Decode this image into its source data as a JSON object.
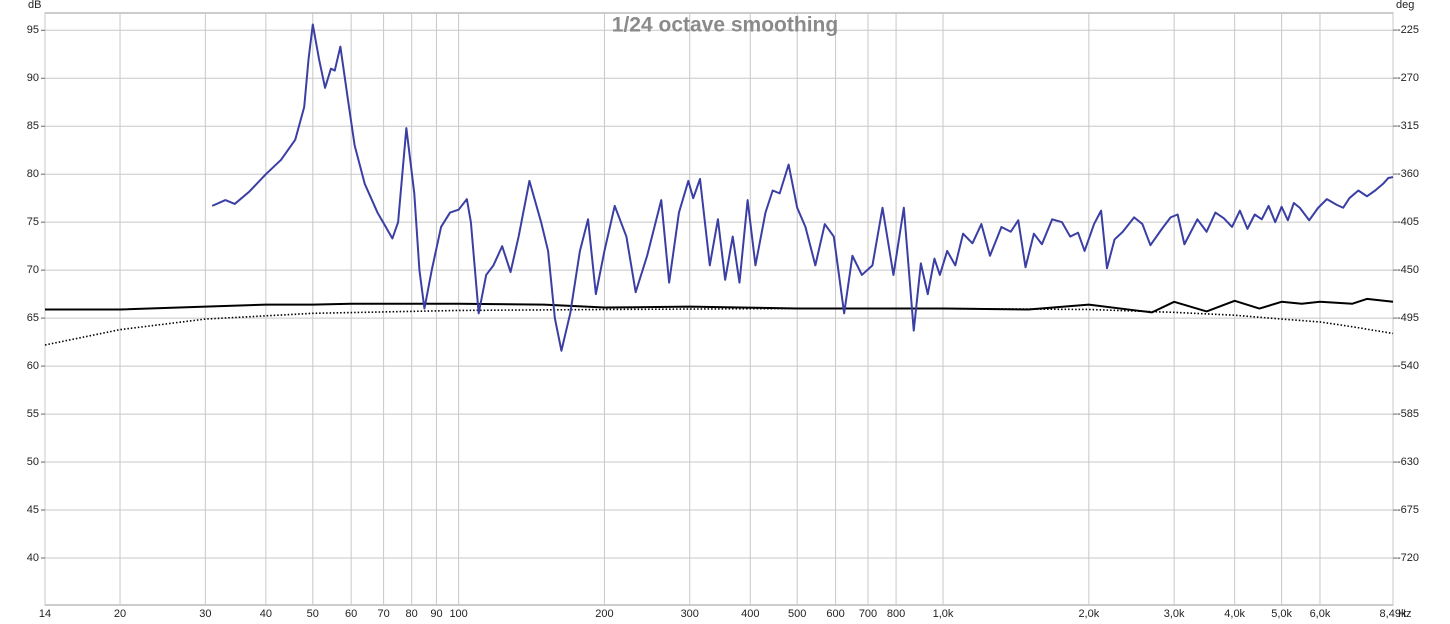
{
  "chart_data": {
    "type": "line",
    "title": "1/24 octave smoothing",
    "y_label": "dB",
    "y2_label": "deg",
    "x_label": "Hz",
    "log_x": true,
    "grid": true,
    "xlim": [
      14,
      8490
    ],
    "xticks": [
      14,
      20,
      30,
      40,
      50,
      60,
      70,
      80,
      90,
      100,
      200,
      300,
      400,
      500,
      600,
      700,
      800,
      {
        "value": 1000,
        "label": "1,0k"
      },
      {
        "value": 2000,
        "label": "2,0k"
      },
      {
        "value": 3000,
        "label": "3,0k"
      },
      {
        "value": 4000,
        "label": "4,0k"
      },
      {
        "value": 5000,
        "label": "5,0k"
      },
      {
        "value": 6000,
        "label": "6,0k"
      },
      {
        "value": 8490,
        "label": "8,49k"
      }
    ],
    "ylim": [
      35.1,
      96.8
    ],
    "yticks": [
      40,
      45,
      50,
      55,
      60,
      65,
      70,
      75,
      80,
      85,
      90,
      95
    ],
    "y2lim": [
      -764,
      -209
    ],
    "y2ticks": [
      -720,
      -675,
      -630,
      -585,
      -540,
      -495,
      -450,
      -405,
      -360,
      -315,
      -270,
      -225
    ],
    "series": [
      {
        "color": "#3b3fa3",
        "style": "solid",
        "x": [
          31,
          33,
          34.5,
          37,
          40,
          43,
          46,
          48,
          49,
          50,
          51.5,
          53,
          54.5,
          55.5,
          57,
          59,
          61,
          64,
          68,
          73,
          75,
          78,
          81,
          83,
          85,
          88,
          92,
          96,
          100,
          104,
          106,
          110,
          114,
          118,
          123,
          128,
          133,
          140,
          148,
          153,
          158,
          163,
          170,
          178,
          185,
          192,
          200,
          210,
          222,
          232,
          245,
          262,
          272,
          285,
          298,
          305,
          315,
          330,
          343,
          355,
          368,
          380,
          395,
          410,
          430,
          445,
          460,
          480,
          500,
          520,
          545,
          570,
          595,
          625,
          650,
          680,
          715,
          750,
          790,
          830,
          870,
          900,
          930,
          960,
          985,
          1020,
          1060,
          1100,
          1150,
          1200,
          1250,
          1320,
          1380,
          1430,
          1480,
          1540,
          1600,
          1680,
          1760,
          1830,
          1900,
          1960,
          2050,
          2120,
          2180,
          2260,
          2350,
          2480,
          2580,
          2680,
          2830,
          2950,
          3050,
          3150,
          3350,
          3500,
          3650,
          3800,
          3950,
          4100,
          4250,
          4400,
          4550,
          4700,
          4850,
          5000,
          5150,
          5300,
          5450,
          5700,
          5950,
          6200,
          6500,
          6700,
          6900,
          7200,
          7500,
          7800,
          8100,
          8300,
          8490
        ],
        "values": [
          76.7,
          77.3,
          76.9,
          78.2,
          80,
          81.5,
          83.6,
          87,
          92,
          95.6,
          92,
          89,
          91,
          90.8,
          93.3,
          88,
          83,
          79,
          76,
          73.3,
          75,
          84.8,
          78,
          70,
          66,
          70,
          74.5,
          76,
          76.3,
          77.4,
          75,
          65.5,
          69.5,
          70.5,
          72.5,
          69.8,
          73.5,
          79.3,
          75,
          72,
          65,
          61.6,
          65.5,
          72,
          75.3,
          67.5,
          72,
          76.7,
          73.5,
          67.7,
          71.5,
          77.3,
          68.7,
          76,
          79.3,
          77.5,
          79.5,
          70.5,
          75.3,
          69,
          73.5,
          68.7,
          77.3,
          70.5,
          76,
          78.3,
          78,
          81,
          76.5,
          74.5,
          70.5,
          74.8,
          73.5,
          65.5,
          71.5,
          69.5,
          70.5,
          76.5,
          69.5,
          76.5,
          63.7,
          70.7,
          67.5,
          71.2,
          69.5,
          72,
          70.5,
          73.8,
          72.8,
          74.8,
          71.5,
          74.5,
          74,
          75.2,
          70.3,
          73.8,
          72.7,
          75.3,
          75,
          73.5,
          73.9,
          72,
          74.8,
          76.2,
          70.2,
          73.2,
          74,
          75.5,
          74.8,
          72.6,
          74.3,
          75.5,
          75.8,
          72.7,
          75.3,
          74,
          76,
          75.4,
          74.5,
          76.2,
          74.3,
          75.8,
          75.3,
          76.7,
          75,
          76.6,
          75.2,
          77,
          76.5,
          75.2,
          76.5,
          77.4,
          76.8,
          76.5,
          77.5,
          78.3,
          77.7,
          78.3,
          79,
          79.6,
          79.7
        ]
      },
      {
        "color": "#000000",
        "style": "solid",
        "x": [
          14,
          20,
          30,
          40,
          50,
          60,
          100,
          150,
          200,
          300,
          500,
          1000,
          1500,
          2000,
          2500,
          2700,
          3000,
          3500,
          4000,
          4500,
          5000,
          5500,
          6000,
          7000,
          7500,
          8490
        ],
        "values": [
          65.9,
          65.9,
          66.2,
          66.4,
          66.4,
          66.5,
          66.5,
          66.4,
          66.1,
          66.2,
          66,
          66,
          65.9,
          66.4,
          65.8,
          65.6,
          66.7,
          65.7,
          66.8,
          66,
          66.7,
          66.5,
          66.7,
          66.5,
          67,
          66.7
        ]
      },
      {
        "color": "#000000",
        "style": "dotted",
        "x": [
          14,
          20,
          30,
          50,
          100,
          200,
          500,
          1000,
          2000,
          3000,
          4000,
          5000,
          6000,
          7000,
          8490
        ],
        "values": [
          62.2,
          63.8,
          64.9,
          65.5,
          65.8,
          65.9,
          66,
          66,
          65.9,
          65.6,
          65.3,
          64.9,
          64.6,
          64.1,
          63.4
        ]
      }
    ]
  }
}
